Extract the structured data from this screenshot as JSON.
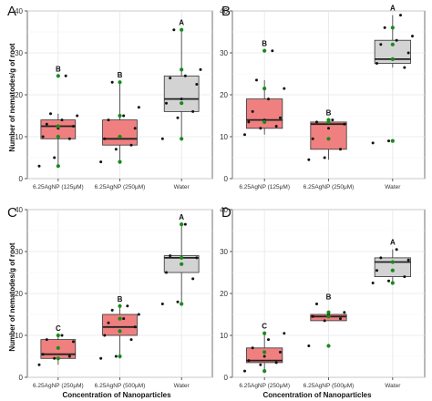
{
  "figure": {
    "ylabel": "Number of nematodes/g of root",
    "xlabel": "Concentration of Nanoparticles"
  },
  "chart_data": [
    {
      "panel": "A",
      "type": "box",
      "categories": [
        "6.25AgNP (125μM)",
        "6.25AgNP (250μM)",
        "Water"
      ],
      "ylim": [
        0,
        40
      ],
      "yticks": [
        0,
        10,
        20,
        30,
        40
      ],
      "grid": true,
      "boxes": [
        {
          "q1": 9.5,
          "median": 12.5,
          "q3": 14,
          "lower": 3,
          "upper": 15.5,
          "fill": "#f08080",
          "letter": "B",
          "points": [
            3,
            5,
            9.5,
            10,
            12,
            12.5,
            13,
            14,
            15,
            15.5,
            24.5
          ],
          "green": [
            3,
            10,
            12.5,
            24.5
          ]
        },
        {
          "q1": 8,
          "median": 9.5,
          "q3": 14,
          "lower": 4,
          "upper": 23,
          "fill": "#f08080",
          "letter": "B",
          "points": [
            4,
            7,
            8,
            9.5,
            10,
            12,
            14,
            15,
            17,
            23
          ],
          "green": [
            4,
            10,
            15,
            23
          ]
        },
        {
          "q1": 16,
          "median": 19,
          "q3": 24.5,
          "lower": 9.5,
          "upper": 35.5,
          "fill": "#d3d3d3",
          "letter": "A",
          "points": [
            9.5,
            14.5,
            16,
            18,
            19,
            22.5,
            24,
            24.5,
            26,
            35.5
          ],
          "green": [
            9.5,
            18,
            26,
            35.5
          ]
        }
      ]
    },
    {
      "panel": "B",
      "type": "box",
      "categories": [
        "6.25AgNP (125μM)",
        "6.25AgNP (250μM)",
        "Water"
      ],
      "ylim": [
        0,
        40
      ],
      "yticks": [
        0,
        10,
        20,
        30,
        40
      ],
      "grid": true,
      "boxes": [
        {
          "q1": 12,
          "median": 14,
          "q3": 19,
          "lower": 10.5,
          "upper": 23.5,
          "fill": "#f08080",
          "letter": "B",
          "points": [
            10.5,
            12,
            12.5,
            13.5,
            14,
            14.5,
            16,
            19,
            21.5,
            23.5,
            30.5
          ],
          "green": [
            13.5,
            21.5,
            30.5
          ]
        },
        {
          "q1": 7,
          "median": 13,
          "q3": 13.5,
          "lower": 4.5,
          "upper": 14,
          "fill": "#f08080",
          "letter": "B",
          "points": [
            4.5,
            5,
            7,
            9.5,
            12,
            13,
            13.5,
            14
          ],
          "green": [
            9.5,
            13.5,
            14
          ]
        },
        {
          "q1": 27.5,
          "median": 28.5,
          "q3": 33,
          "lower": 26.5,
          "upper": 39,
          "fill": "#d3d3d3",
          "letter": "A",
          "points": [
            8.5,
            9,
            26.5,
            27.5,
            28.5,
            30,
            32,
            33,
            34,
            36,
            39
          ],
          "green": [
            9,
            28.5,
            32,
            36
          ]
        }
      ]
    },
    {
      "panel": "C",
      "type": "box",
      "categories": [
        "6.25AgNP (250μM)",
        "6.25AgNP (500μM)",
        "Water"
      ],
      "ylim": [
        0,
        40
      ],
      "yticks": [
        0,
        10,
        20,
        30,
        40
      ],
      "grid": true,
      "boxes": [
        {
          "q1": 4.5,
          "median": 5.5,
          "q3": 9,
          "lower": 3,
          "upper": 10,
          "fill": "#f08080",
          "letter": "C",
          "points": [
            3,
            4.5,
            5,
            5.5,
            7,
            8.5,
            9,
            10
          ],
          "green": [
            4.5,
            7,
            10
          ]
        },
        {
          "q1": 10,
          "median": 12,
          "q3": 15,
          "lower": 4.5,
          "upper": 17,
          "fill": "#f08080",
          "letter": "B",
          "points": [
            4.5,
            5,
            9,
            10,
            11,
            12,
            13,
            14,
            15,
            16,
            17
          ],
          "green": [
            5,
            11,
            14,
            17
          ]
        },
        {
          "q1": 25,
          "median": 28.5,
          "q3": 29,
          "lower": 17.5,
          "upper": 36.5,
          "fill": "#d3d3d3",
          "letter": "A",
          "points": [
            17.5,
            18,
            23.5,
            25,
            27,
            28.5,
            29,
            36.5
          ],
          "green": [
            17.5,
            27,
            28.5,
            36.5
          ]
        }
      ]
    },
    {
      "panel": "D",
      "type": "box",
      "categories": [
        "6.25AgNP (250μM)",
        "6.25AgNP (500μM)",
        "Water"
      ],
      "ylim": [
        0,
        40
      ],
      "yticks": [
        0,
        10,
        20,
        30,
        40
      ],
      "grid": true,
      "boxes": [
        {
          "q1": 3.5,
          "median": 4,
          "q3": 7,
          "lower": 1.5,
          "upper": 10.5,
          "fill": "#f08080",
          "letter": "C",
          "points": [
            1.5,
            3,
            3.5,
            4,
            5,
            6,
            7,
            9,
            10.5
          ],
          "green": [
            1.5,
            6,
            10.5
          ]
        },
        {
          "q1": 13.5,
          "median": 14.5,
          "q3": 15,
          "lower": 13.5,
          "upper": 15.5,
          "fill": "#f08080",
          "letter": "B",
          "points": [
            7.5,
            13.5,
            14,
            14.5,
            15,
            15.5,
            17.5
          ],
          "green": [
            7.5,
            14.5,
            15.5
          ]
        },
        {
          "q1": 24,
          "median": 27.5,
          "q3": 28.5,
          "lower": 22.5,
          "upper": 30.5,
          "fill": "#d3d3d3",
          "letter": "A",
          "points": [
            22.5,
            23,
            24,
            25.5,
            27.5,
            28,
            28.5,
            30.5
          ],
          "green": [
            22.5,
            25.5,
            27.5
          ]
        }
      ]
    }
  ]
}
